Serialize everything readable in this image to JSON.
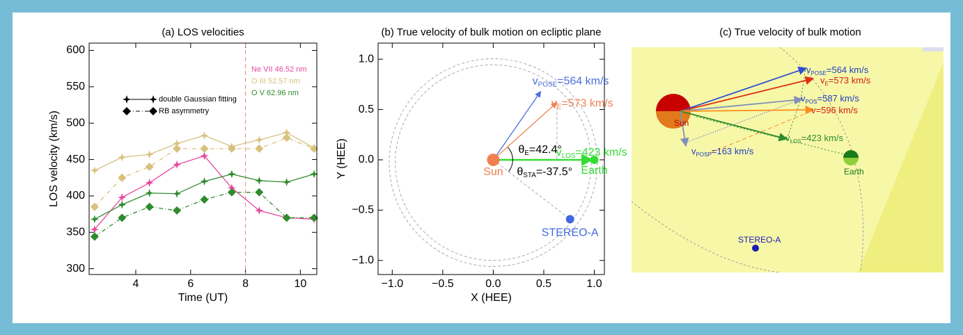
{
  "chart_data": [
    {
      "type": "line",
      "title": "(a)  LOS velocities",
      "xlabel": "Time (UT)",
      "ylabel": "LOS velocity (km/s)",
      "x": [
        2.5,
        3.5,
        4.5,
        5.5,
        6.5,
        7.5,
        8.5,
        9.5,
        10.5
      ],
      "xlim": [
        2.3,
        10.6
      ],
      "xticks": [
        4,
        6,
        8,
        10
      ],
      "ylim": [
        292,
        610
      ],
      "yticks": [
        300,
        350,
        400,
        450,
        500,
        550,
        600
      ],
      "vline": 8,
      "vline_color": "#f08080",
      "legend": [
        "double Gaussian fitting",
        "RB asymmetry"
      ],
      "series": [
        {
          "name": "Ne VII 46.52 nm",
          "color": "#e8489f",
          "values": [
            354,
            398,
            418,
            443,
            455,
            411,
            380,
            370,
            368
          ]
        },
        {
          "name": "O III 52.57 nm",
          "color": "#d8c07e",
          "values": [
            435,
            453,
            457,
            472,
            483,
            468,
            477,
            487,
            466
          ],
          "rb_values": [
            385,
            425,
            440,
            465,
            465,
            465,
            465,
            480,
            465
          ]
        },
        {
          "name": "O V 62.96 nm",
          "color": "#2e8b2e",
          "values": [
            368,
            388,
            404,
            403,
            420,
            430,
            421,
            419,
            430
          ],
          "rb_values": [
            344,
            370,
            385,
            380,
            395,
            405,
            405,
            370,
            370
          ]
        }
      ]
    },
    {
      "type": "vector",
      "title": "(b)  True velocity of bulk motion on ecliptic plane",
      "xlabel": "X (HEE)",
      "ylabel": "Y (HEE)",
      "xlim": [
        -1.14,
        1.1
      ],
      "ylim": [
        -1.14,
        1.16
      ],
      "xticks": [
        {
          "value": -1,
          "label": "−1.0"
        },
        {
          "value": -0.5,
          "label": "−0.5"
        },
        {
          "value": 0,
          "label": "0.0"
        },
        {
          "value": 0.5,
          "label": "0.5"
        },
        {
          "value": 1,
          "label": "1.0"
        }
      ],
      "yticks": [
        {
          "value": -1,
          "label": "−1.0"
        },
        {
          "value": -0.5,
          "label": "−0.5"
        },
        {
          "value": 0,
          "label": "0.0"
        },
        {
          "value": 0.5,
          "label": "0.5"
        },
        {
          "value": 1,
          "label": "1.0"
        }
      ],
      "points": [
        {
          "name": "Sun",
          "color": "#f08050",
          "x": 0,
          "y": 0
        },
        {
          "name": "Earth",
          "color": "#33dd33",
          "x": 1,
          "y": 0
        },
        {
          "name": "STEREO-A",
          "color": "#4169e1",
          "x": 0.76,
          "y": -0.59
        }
      ],
      "vectors": [
        {
          "sym": "v",
          "sub": "POSE",
          "text": "=564 km/s",
          "color": "#4a6fdc",
          "x": 0.47,
          "y": 0.68
        },
        {
          "sym": "v",
          "sub": "E",
          "text": "=573 km/s",
          "color": "#f08050",
          "x": 0.63,
          "y": 0.57
        },
        {
          "sym": "v",
          "sub": "LOS",
          "text": "=423 km/s",
          "color": "#33dd33",
          "x": 0.98,
          "y": 0
        }
      ],
      "angles": [
        {
          "sym": "θ",
          "sub": "E",
          "text": "=42.4°"
        },
        {
          "sym": "θ",
          "sub": "STA",
          "text": "=-37.5°"
        }
      ]
    }
  ],
  "panel_c": {
    "title": "(c)  True velocity of bulk motion",
    "bodies": [
      {
        "name": "Sun"
      },
      {
        "name": "Earth"
      },
      {
        "name": "STEREO-A"
      }
    ],
    "vectors": [
      {
        "sym": "v",
        "sub": "POSE",
        "text": "=564 km/s"
      },
      {
        "sym": "v",
        "sub": "E",
        "text": "=573 km/s"
      },
      {
        "sym": "v",
        "sub": "POS",
        "text": "=587 km/s"
      },
      {
        "sym": "v",
        "text": "=596 km/s"
      },
      {
        "sym": "v",
        "sub": "LOS",
        "text": "=423 km/s"
      },
      {
        "sym": "v",
        "sub": "POSP",
        "text": "=163 km/s"
      }
    ]
  }
}
